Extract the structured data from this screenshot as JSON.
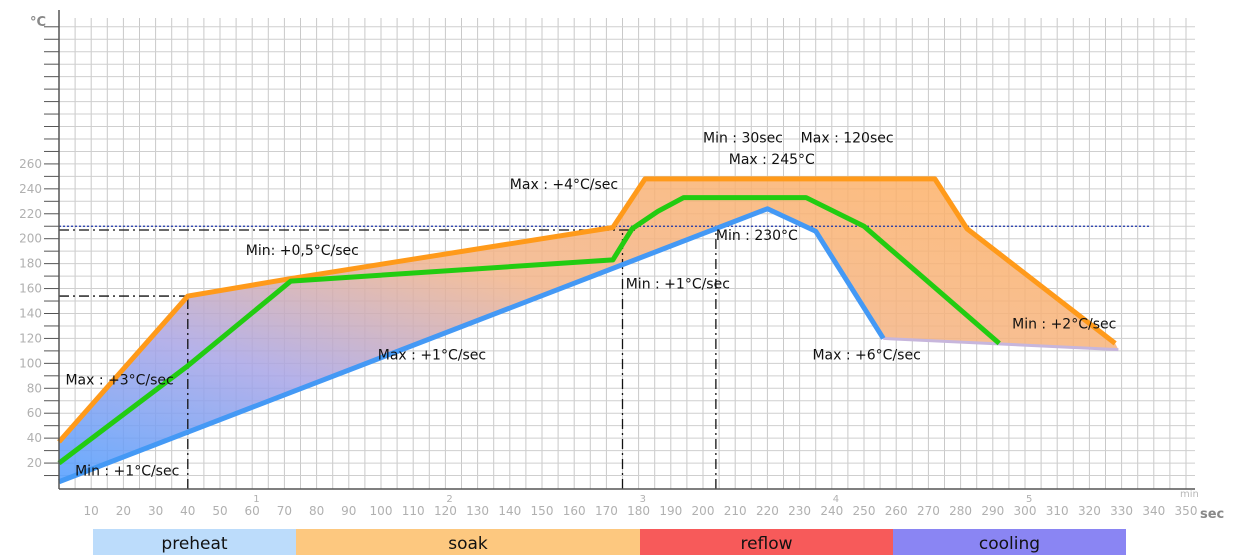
{
  "chart_data": {
    "type": "line",
    "title": "",
    "ylabel": "°C",
    "xlabel": "sec",
    "x_secondary_label": "min",
    "xlim": [
      0,
      355
    ],
    "ylim": [
      0,
      290
    ],
    "x_ticks": [
      10,
      20,
      30,
      40,
      50,
      60,
      70,
      80,
      90,
      100,
      110,
      120,
      130,
      140,
      150,
      160,
      170,
      180,
      190,
      200,
      210,
      220,
      230,
      240,
      250,
      260,
      270,
      280,
      290,
      300,
      310,
      320,
      330,
      340,
      350
    ],
    "y_ticks": [
      20,
      40,
      60,
      80,
      100,
      120,
      140,
      160,
      180,
      200,
      220,
      240,
      260
    ],
    "minute_marks": [
      {
        "label": "1",
        "x": 60
      },
      {
        "label": "2",
        "x": 120
      },
      {
        "label": "3",
        "x": 180
      },
      {
        "label": "4",
        "x": 240
      },
      {
        "label": "5",
        "x": 300
      }
    ],
    "series": [
      {
        "color": "#ff9a1a",
        "x": [
          0,
          40,
          72,
          172,
          182,
          272,
          282,
          328
        ],
        "y": [
          37,
          154,
          168,
          209,
          248,
          248,
          208,
          116
        ]
      },
      {
        "color": "#22cc11",
        "x": [
          0,
          40,
          72,
          172,
          178,
          186,
          194,
          232,
          250,
          292
        ],
        "y": [
          20,
          98,
          166,
          183,
          208,
          222,
          233,
          233,
          210,
          116
        ]
      },
      {
        "color": "#4499f5",
        "x": [
          0,
          220,
          235,
          256
        ],
        "y": [
          5,
          224,
          206,
          120
        ]
      }
    ],
    "reference_lines": [
      {
        "axis": "y",
        "value": 210,
        "color": "#1a33aa",
        "style": "dotted"
      },
      {
        "axis": "y",
        "value": 207,
        "color": "#111111",
        "style": "dash-dot",
        "x_end": 180
      },
      {
        "axis": "y",
        "value": 154,
        "color": "#111111",
        "style": "dash-dot",
        "x_end": 40
      },
      {
        "axis": "x",
        "value": 40,
        "color": "#111111",
        "style": "dash-dot",
        "y_end": 154
      },
      {
        "axis": "x",
        "value": 175,
        "color": "#111111",
        "style": "dash-dot",
        "y_end": 207
      },
      {
        "axis": "x",
        "value": 204,
        "color": "#111111",
        "style": "dash-dot",
        "y_end": 207
      }
    ],
    "annotations": [
      {
        "text": "Min : 30sec    Max : 120sec",
        "x": 200,
        "y": 277
      },
      {
        "text": "Max : 245°C",
        "x": 208,
        "y": 260
      },
      {
        "text": "Max : +4°C/sec",
        "x": 140,
        "y": 240
      },
      {
        "text": "Min: +0,5°C/sec",
        "x": 58,
        "y": 187
      },
      {
        "text": "Min : 230°C",
        "x": 204,
        "y": 199
      },
      {
        "text": "Min : +1°C/sec",
        "x": 176,
        "y": 160
      },
      {
        "text": "Min : +2°C/sec",
        "x": 296,
        "y": 128
      },
      {
        "text": "Max : +3°C/sec",
        "x": 2,
        "y": 83
      },
      {
        "text": "Max : +1°C/sec",
        "x": 99,
        "y": 103
      },
      {
        "text": "Max : +6°C/sec",
        "x": 234,
        "y": 103
      },
      {
        "text": "Min : +1°C/sec",
        "x": 5,
        "y": 10
      }
    ],
    "phases": [
      {
        "label": "preheat",
        "color": "#bcdcfb"
      },
      {
        "label": "soak",
        "color": "#fdc87f"
      },
      {
        "label": "reflow",
        "color": "#f75a5a"
      },
      {
        "label": "cooling",
        "color": "#8a85f3"
      }
    ],
    "grid": true
  }
}
